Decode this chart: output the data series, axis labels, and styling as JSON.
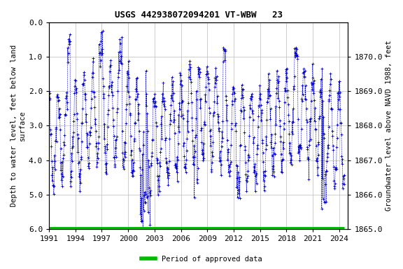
{
  "title": "USGS 442938072094201 VT-WBW   23",
  "ylabel_left": "Depth to water level, feet below land\nsurface",
  "ylabel_right": "Groundwater level above NAVD 1988, feet",
  "xlim": [
    1991.0,
    2025.0
  ],
  "ylim_left": [
    6.0,
    0.0
  ],
  "ylim_right": [
    1865.0,
    1871.0
  ],
  "xticks": [
    1991,
    1994,
    1997,
    2000,
    2003,
    2006,
    2009,
    2012,
    2015,
    2018,
    2021,
    2024
  ],
  "yticks_left": [
    0.0,
    1.0,
    2.0,
    3.0,
    4.0,
    5.0,
    6.0
  ],
  "yticks_right": [
    1865.0,
    1866.0,
    1867.0,
    1868.0,
    1869.0,
    1870.0
  ],
  "data_color": "#0000cc",
  "approved_color": "#00bb00",
  "background_color": "#ffffff",
  "grid_color": "#bbbbbb",
  "title_fontsize": 9,
  "label_fontsize": 7.5,
  "tick_fontsize": 8,
  "legend_label": "Period of approved data",
  "land_surface_elevation": 1871.0,
  "figwidth": 5.76,
  "figheight": 3.84,
  "dpi": 100
}
